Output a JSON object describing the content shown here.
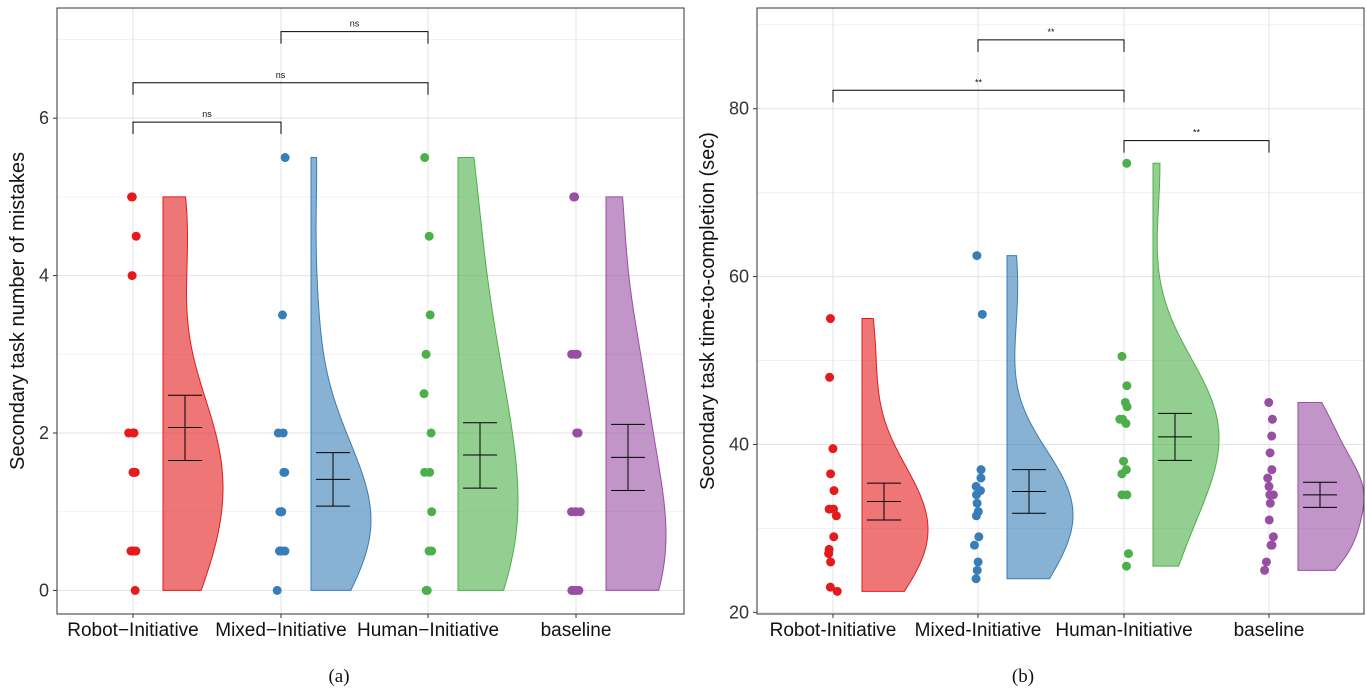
{
  "figure": {
    "panels": [
      {
        "caption": "(a)"
      },
      {
        "caption": "(b)"
      }
    ]
  },
  "colors": {
    "Robot-Initiative": "#e41a1c",
    "Mixed-Initiative": "#377eb8",
    "Human-Initiative": "#4daf4a",
    "baseline": "#984ea3"
  },
  "chart_data": [
    {
      "type": "scatter",
      "subtype": "raincloud (violin + jittered points + mean with error bars)",
      "ylabel": "Secondary task number of mistakes",
      "ylim": [
        -0.3,
        7.4
      ],
      "yticks": [
        0,
        2,
        4,
        6
      ],
      "grid": true,
      "categories": [
        "Robot−Initiative",
        "Mixed−Initiative",
        "Human−Initiative",
        "baseline"
      ],
      "series": [
        {
          "category": "Robot−Initiative",
          "points": [
            0,
            0.5,
            0.5,
            0.5,
            0.5,
            1.5,
            1.5,
            1.5,
            2,
            2,
            2,
            2,
            4,
            4.5,
            5,
            5
          ],
          "mean": 2.07,
          "ci": [
            1.65,
            2.48
          ],
          "violin_range": [
            0,
            5
          ]
        },
        {
          "category": "Mixed−Initiative",
          "points": [
            0,
            0.5,
            0.5,
            0.5,
            0.5,
            0.5,
            1,
            1,
            1,
            1,
            1.5,
            1.5,
            2,
            2,
            3.5,
            5.5
          ],
          "mean": 1.41,
          "ci": [
            1.07,
            1.75
          ],
          "violin_range": [
            0,
            5.5
          ]
        },
        {
          "category": "Human−Initiative",
          "points": [
            0,
            0,
            0.5,
            0.5,
            1,
            1.5,
            1.5,
            2,
            2.5,
            3,
            3.5,
            4.5,
            5.5
          ],
          "mean": 1.72,
          "ci": [
            1.3,
            2.13
          ],
          "violin_range": [
            0,
            5.5
          ]
        },
        {
          "category": "baseline",
          "points": [
            0,
            0,
            0,
            0,
            0,
            1,
            1,
            1,
            1,
            2,
            2,
            3,
            3,
            3,
            5,
            5
          ],
          "mean": 1.69,
          "ci": [
            1.27,
            2.11
          ],
          "violin_range": [
            0,
            5
          ]
        }
      ],
      "annotations": [
        {
          "from": "Robot−Initiative",
          "to": "Mixed−Initiative",
          "label": "ns",
          "y": 5.95
        },
        {
          "from": "Robot−Initiative",
          "to": "Human−Initiative",
          "label": "ns",
          "y": 6.45
        },
        {
          "from": "Mixed−Initiative",
          "to": "Human−Initiative",
          "label": "ns",
          "y": 7.1
        }
      ]
    },
    {
      "type": "scatter",
      "subtype": "raincloud (violin + jittered points + mean with error bars)",
      "ylabel": "Secondary task time-to-completion (sec)",
      "ylim": [
        19.8,
        92.0
      ],
      "yticks": [
        20,
        40,
        60,
        80
      ],
      "grid": true,
      "categories": [
        "Robot-Initiative",
        "Mixed-Initiative",
        "Human-Initiative",
        "baseline"
      ],
      "series": [
        {
          "category": "Robot-Initiative",
          "points": [
            22.5,
            23,
            26,
            27,
            27.5,
            29,
            31.5,
            32.3,
            32.3,
            34.5,
            36.5,
            39.5,
            48,
            55
          ],
          "mean": 33.2,
          "ci": [
            31,
            35.4
          ],
          "violin_range": [
            22.5,
            55
          ]
        },
        {
          "category": "Mixed-Initiative",
          "points": [
            24,
            25,
            26,
            28,
            29,
            31.5,
            32,
            33,
            34,
            34.5,
            35,
            36,
            37,
            55.5,
            62.5
          ],
          "mean": 34.4,
          "ci": [
            31.8,
            37
          ],
          "violin_range": [
            24,
            62.5
          ]
        },
        {
          "category": "Human-Initiative",
          "points": [
            25.5,
            27,
            34,
            34,
            36.5,
            37,
            38,
            42.5,
            43,
            43,
            44.5,
            45,
            47,
            50.5,
            73.5
          ],
          "mean": 40.9,
          "ci": [
            38.1,
            43.7
          ],
          "violin_range": [
            25.5,
            73.5
          ]
        },
        {
          "category": "baseline",
          "points": [
            25,
            26,
            28,
            28,
            29,
            31,
            33,
            34,
            34,
            35,
            36,
            37,
            39,
            41,
            43,
            45
          ],
          "mean": 34,
          "ci": [
            32.5,
            35.5
          ],
          "violin_range": [
            25,
            45
          ]
        }
      ],
      "annotations": [
        {
          "from": "Human-Initiative",
          "to": "baseline",
          "label": "**",
          "y": 76.2
        },
        {
          "from": "Robot-Initiative",
          "to": "Human-Initiative",
          "label": "**",
          "y": 82.2
        },
        {
          "from": "Mixed-Initiative",
          "to": "Human-Initiative",
          "label": "**",
          "y": 88.2
        }
      ]
    }
  ]
}
